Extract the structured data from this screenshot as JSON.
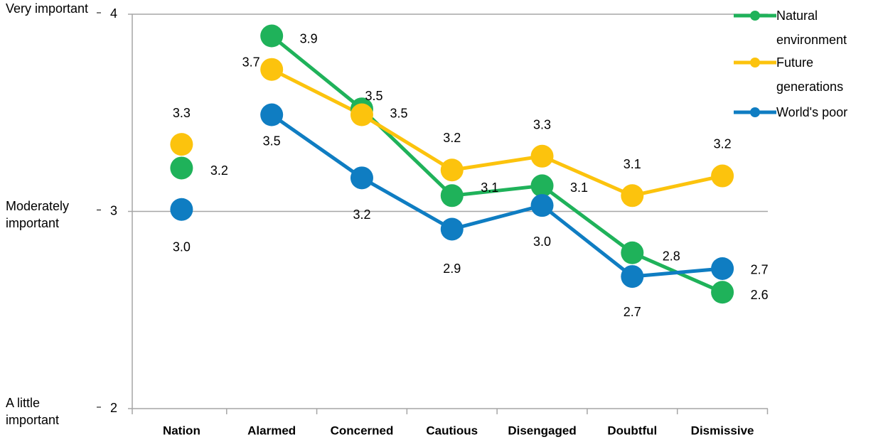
{
  "chart_data": {
    "type": "line",
    "categories": [
      "Nation",
      "Alarmed",
      "Concerned",
      "Cautious",
      "Disengaged",
      "Doubtful",
      "Dismissive"
    ],
    "series": [
      {
        "name": "Natural environment",
        "color": "#1fb25a",
        "values": [
          3.22,
          3.89,
          3.52,
          3.08,
          3.13,
          2.79,
          2.59
        ],
        "value_labels": [
          "3.2",
          "3.9",
          "3.5",
          "3.1",
          "3.1",
          "2.8",
          "2.6"
        ]
      },
      {
        "name": "Future generations",
        "color": "#fcc30d",
        "values": [
          3.34,
          3.72,
          3.49,
          3.21,
          3.28,
          3.08,
          3.18
        ],
        "value_labels": [
          "3.3",
          "3.7",
          "3.5",
          "3.2",
          "3.3",
          "3.1",
          "3.2"
        ]
      },
      {
        "name": "World's poor",
        "color": "#0f7dc2",
        "values": [
          3.01,
          3.49,
          3.17,
          2.91,
          3.03,
          2.67,
          2.71
        ],
        "value_labels": [
          "3.0",
          "3.5",
          "3.2",
          "2.9",
          "3.0",
          "2.7",
          "2.7"
        ]
      }
    ],
    "ylim": [
      2,
      4
    ],
    "yticks": [
      2,
      3,
      4
    ],
    "ytick_descriptions": [
      "A little important",
      "Moderately important",
      "Very important"
    ],
    "grid": true,
    "legend": "top-right"
  }
}
